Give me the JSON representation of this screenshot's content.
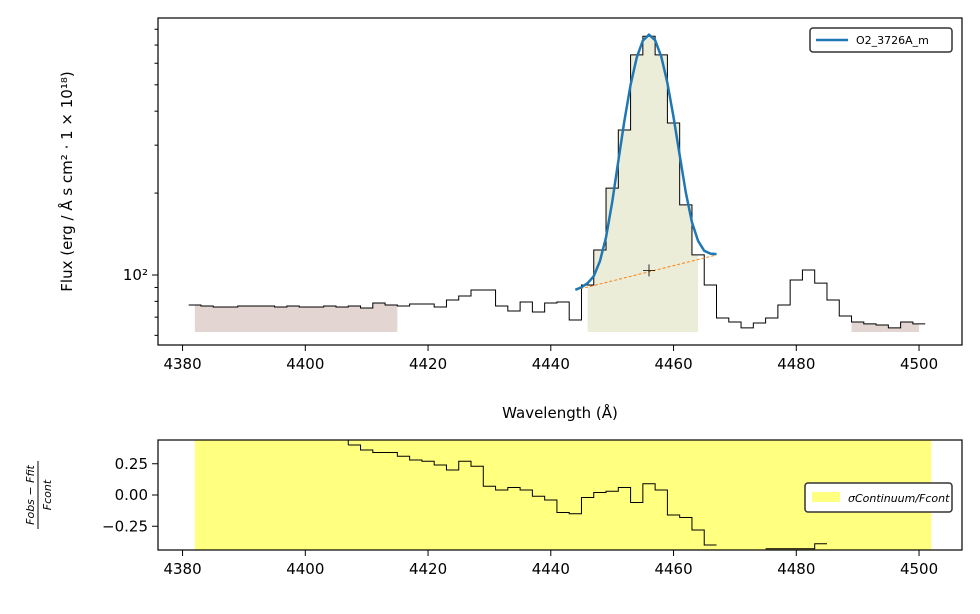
{
  "chart_data": [
    {
      "type": "step",
      "xlabel": "Wavelength (Å)",
      "ylabel": "Flux (erg / Å s cm² · 1 × 10¹⁸)",
      "xlim": [
        4376,
        4507
      ],
      "xticks": [
        4380,
        4400,
        4420,
        4440,
        4460,
        4480,
        4500
      ],
      "ylim": [
        55.3,
        880
      ],
      "log_y": true,
      "yticks": [
        {
          "value": 100,
          "label": "10²"
        }
      ],
      "yminorticks": [
        60,
        70,
        80,
        90,
        200,
        300,
        400,
        500,
        600,
        700,
        800
      ],
      "x": [
        4382,
        4384,
        4386,
        4388,
        4390,
        4392,
        4394,
        4396,
        4398,
        4400,
        4402,
        4404,
        4406,
        4408,
        4410,
        4412,
        4414,
        4416,
        4418,
        4420,
        4422,
        4424,
        4426,
        4428,
        4430,
        4432,
        4434,
        4436,
        4438,
        4440,
        4442,
        4444,
        4446,
        4448,
        4450,
        4452,
        4454,
        4456,
        4458,
        4460,
        4462,
        4464,
        4466,
        4468,
        4470,
        4472,
        4474,
        4476,
        4478,
        4480,
        4482,
        4484,
        4486,
        4488,
        4490,
        4492,
        4494,
        4496,
        4498,
        4500
      ],
      "values": [
        77.6,
        76.9,
        76.3,
        76.3,
        76.9,
        76.9,
        76.9,
        76.3,
        76.9,
        76.3,
        76.3,
        76.9,
        76.3,
        76.9,
        75.6,
        78.9,
        77.6,
        76.9,
        78.2,
        78.2,
        76.3,
        80.9,
        83.7,
        88.1,
        88.1,
        76.9,
        73.7,
        79.6,
        73.1,
        78.9,
        79.6,
        68.3,
        91.9,
        123.6,
        208.6,
        341,
        644,
        754,
        644,
        362,
        181,
        118.5,
        91.9,
        69.5,
        67.2,
        63.9,
        66.6,
        69.5,
        77.6,
        95.9,
        104.3,
        93.4,
        80.9,
        70.7,
        67.2,
        66.1,
        65.5,
        63.9,
        67.2,
        66.1
      ],
      "bands": [
        {
          "x": [
            4382,
            4415
          ],
          "floor": 61.7,
          "color": "#e2d5d2"
        },
        {
          "x": [
            4446,
            4464
          ],
          "floor": 61.7,
          "color": "#ecedd9"
        },
        {
          "x": [
            4489,
            4500
          ],
          "floor": 61.7,
          "color": "#e2d5d2"
        }
      ],
      "fit": {
        "name": "O2_3726A_m",
        "color": "#1f77b4",
        "x": [
          4444,
          4445,
          4446,
          4447,
          4448,
          4449,
          4450,
          4451,
          4452,
          4453,
          4454,
          4455,
          4456,
          4457,
          4458,
          4459,
          4460,
          4461,
          4462,
          4463,
          4464,
          4465,
          4466,
          4467
        ],
        "values": [
          88.2,
          90.1,
          93.3,
          99,
          112.3,
          137.6,
          185,
          262.3,
          369.6,
          499.9,
          629.3,
          726.6,
          763.9,
          729.2,
          634.6,
          507.9,
          380.2,
          275.6,
          200.9,
          156.2,
          133.5,
          122.8,
          119.8,
          119.3
        ]
      },
      "continuum": {
        "color": "#ff7f0e",
        "x": [
          4444,
          4467
        ],
        "values": [
          88,
          118.5
        ]
      },
      "marker": {
        "x": 4456,
        "value": 104
      }
    },
    {
      "type": "residual",
      "ylabel": {
        "num": "Fobs − Ffit",
        "den": "Fcont"
      },
      "xlim": [
        4376,
        4507
      ],
      "xticks": [
        4380,
        4400,
        4420,
        4440,
        4460,
        4480,
        4500
      ],
      "ylim": [
        -0.44,
        0.44
      ],
      "yticks": [
        0.25,
        {
          "value": 0,
          "label": "0.00"
        },
        {
          "value": -0.25,
          "label": "−0.25"
        }
      ],
      "band": {
        "name": "σContinuum/Fcont",
        "x": [
          4382,
          4502
        ],
        "color": "#ffff80"
      },
      "x": [
        4408,
        4410,
        4412,
        4414,
        4416,
        4418,
        4420,
        4422,
        4424,
        4426,
        4428,
        4430,
        4432,
        4434,
        4436,
        4438,
        4440,
        4442,
        4444,
        4446,
        4448,
        4450,
        4452,
        4454,
        4456,
        4458,
        4460,
        4462,
        4464,
        4466,
        4468,
        4482,
        4484
      ],
      "values": [
        0.4,
        0.36,
        0.34,
        0.34,
        0.31,
        0.28,
        0.27,
        0.24,
        0.2,
        0.27,
        0.23,
        0.07,
        0.04,
        0.06,
        0.04,
        -0.01,
        -0.04,
        -0.14,
        -0.15,
        -0.02,
        0.02,
        0.03,
        0.06,
        -0.06,
        0.09,
        0.04,
        -0.16,
        -0.18,
        -0.28,
        -0.4,
        null,
        -0.43,
        -0.39
      ]
    }
  ]
}
